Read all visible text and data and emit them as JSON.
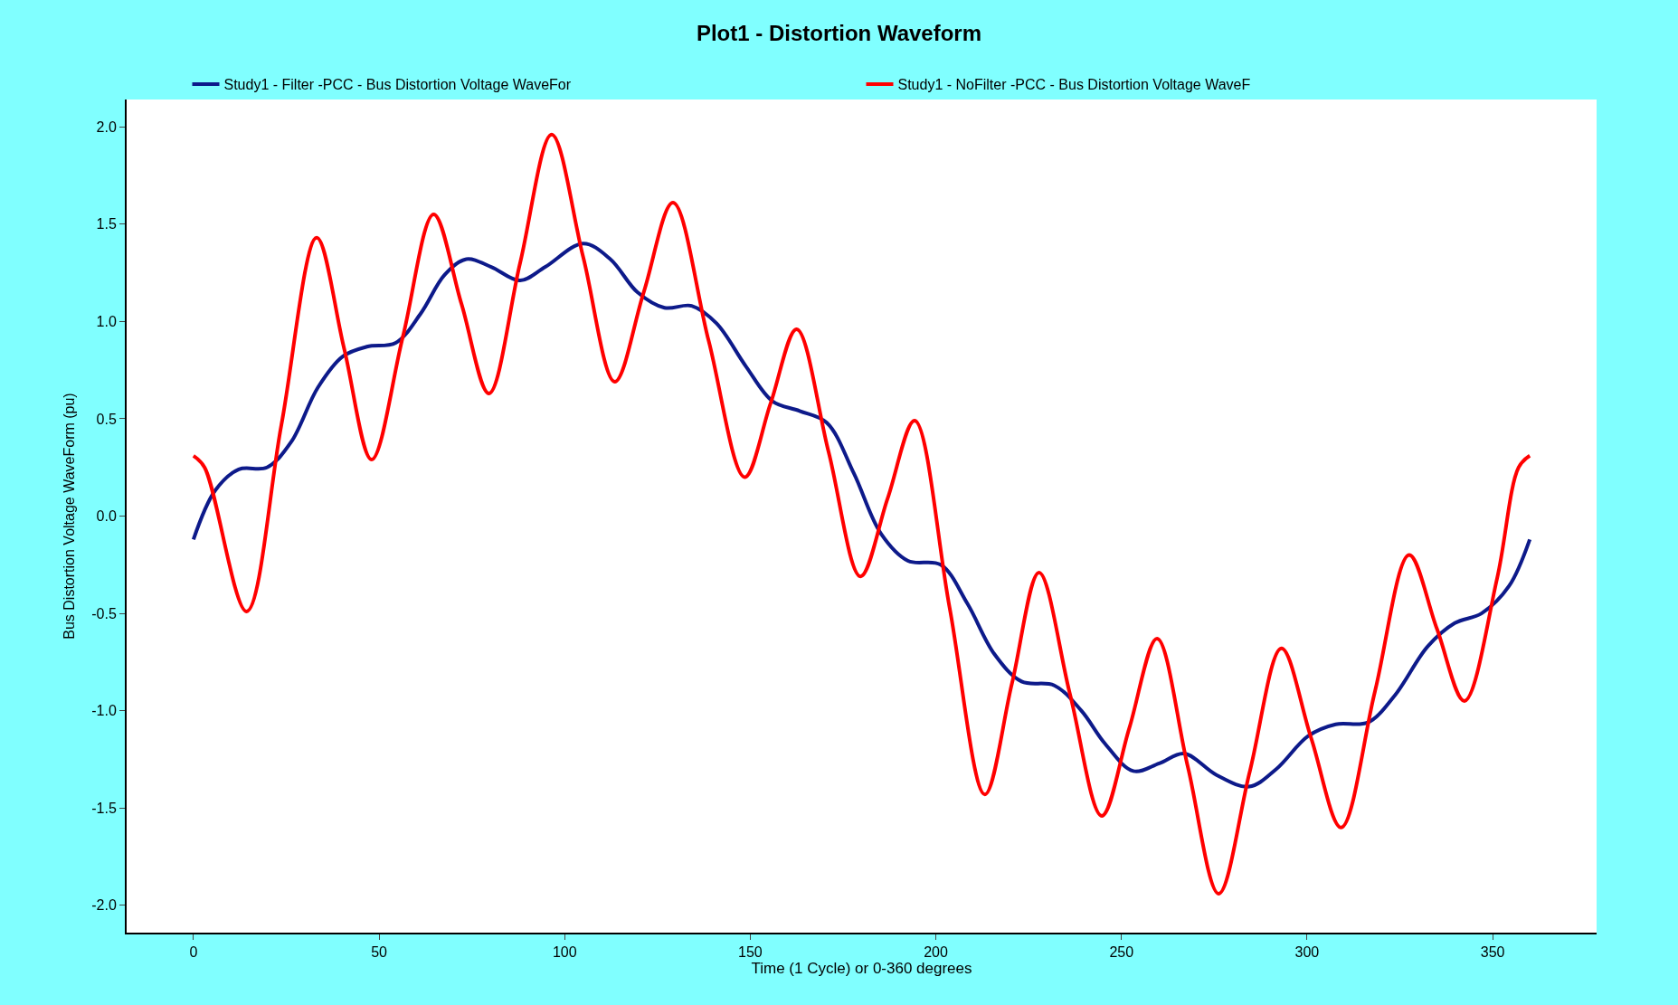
{
  "chart_data": {
    "type": "line",
    "title": "Plot1 - Distortion Waveform",
    "xlabel": "Time (1 Cycle) or 0-360 degrees",
    "ylabel": "Bus Distortion Voltage WaveForm (pu)",
    "xlim": [
      -18,
      378
    ],
    "ylim": [
      -2.14,
      2.14
    ],
    "xticks": [
      0,
      50,
      100,
      150,
      200,
      250,
      300,
      350
    ],
    "yticks": [
      {
        "value": -2,
        "label": "-2.0"
      },
      {
        "value": -1.5,
        "label": "-1.5"
      },
      {
        "value": -1,
        "label": "-1.0"
      },
      {
        "value": -0.5,
        "label": "-0.5"
      },
      {
        "value": 0,
        "label": "0.0"
      },
      {
        "value": 0.5,
        "label": "0.5"
      },
      {
        "value": 1,
        "label": "1.0"
      },
      {
        "value": 1.5,
        "label": "1.5"
      },
      {
        "value": 2,
        "label": "2.0"
      }
    ],
    "legend": "top",
    "marker": "none",
    "line_style": "solid",
    "series": [
      {
        "name": "Study1 - Filter -PCC - Bus Distortion Voltage WaveFor",
        "color": "#0d1a8a",
        "x": [
          0,
          5.8,
          12.2,
          19.8,
          26.3,
          33.5,
          40.2,
          46.7,
          54.5,
          61.2,
          67.7,
          73.5,
          80.2,
          88,
          94.8,
          105,
          112.3,
          119.6,
          126.9,
          134.2,
          140.9,
          148.8,
          156,
          163.3,
          170.6,
          177.9,
          185.2,
          192.5,
          201.3,
          208.5,
          215.8,
          223.1,
          231.9,
          239.2,
          245.6,
          253.2,
          260.2,
          266.9,
          275.6,
          284.4,
          291.7,
          300.3,
          307.7,
          316.4,
          323.7,
          332.5,
          339.8,
          347,
          354.4,
          360
        ],
        "values": [
          -0.12,
          0.13,
          0.24,
          0.25,
          0.38,
          0.66,
          0.82,
          0.87,
          0.89,
          1.04,
          1.24,
          1.32,
          1.28,
          1.21,
          1.28,
          1.4,
          1.32,
          1.15,
          1.07,
          1.08,
          0.99,
          0.77,
          0.59,
          0.54,
          0.48,
          0.22,
          -0.09,
          -0.23,
          -0.25,
          -0.45,
          -0.71,
          -0.85,
          -0.87,
          -1.0,
          -1.17,
          -1.31,
          -1.27,
          -1.22,
          -1.33,
          -1.39,
          -1.3,
          -1.13,
          -1.07,
          -1.06,
          -0.92,
          -0.67,
          -0.55,
          -0.5,
          -0.36,
          -0.12
        ]
      },
      {
        "name": "Study1 - NoFilter -PCC - Bus Distortion Voltage WaveF",
        "color": "#ff0000",
        "x": [
          0,
          3,
          14.3,
          23.7,
          33.2,
          40.6,
          48,
          56.4,
          64.7,
          72.2,
          79.6,
          88,
          96.5,
          105,
          113.5,
          121.3,
          129.2,
          138.8,
          148.5,
          155.5,
          162.5,
          171.1,
          179.7,
          187,
          194.3,
          203.7,
          213.2,
          220.5,
          227.8,
          236.2,
          244.7,
          252.1,
          259.6,
          267.9,
          276.2,
          284.6,
          293.1,
          301.1,
          309.2,
          318.3,
          327.5,
          335,
          342.4,
          351.2,
          357,
          360
        ],
        "values": [
          0.31,
          0.25,
          -0.49,
          0.47,
          1.43,
          0.86,
          0.29,
          0.92,
          1.55,
          1.09,
          0.63,
          1.3,
          1.96,
          1.33,
          0.69,
          1.15,
          1.61,
          0.9,
          0.2,
          0.58,
          0.96,
          0.33,
          -0.31,
          0.09,
          0.49,
          -0.47,
          -1.43,
          -0.86,
          -0.29,
          -0.92,
          -1.54,
          -1.09,
          -0.63,
          -1.29,
          -1.94,
          -1.31,
          -0.68,
          -1.14,
          -1.6,
          -0.9,
          -0.2,
          -0.58,
          -0.95,
          -0.32,
          0.25,
          0.31
        ]
      }
    ]
  }
}
